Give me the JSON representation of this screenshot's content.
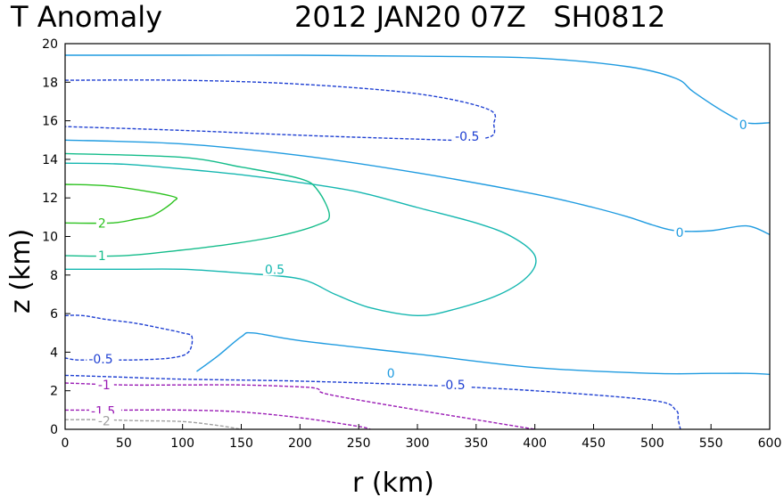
{
  "header": {
    "title_left": "T Anomaly",
    "title_right": "2012 JAN20 07Z   SH0812"
  },
  "chart_data": {
    "type": "contour",
    "title": "T Anomaly",
    "subtitle": "2012 JAN20 07Z   SH0812",
    "xlabel": "r (km)",
    "ylabel": "z (km)",
    "xlim": [
      0,
      600
    ],
    "ylim": [
      0,
      20
    ],
    "xticks": [
      0,
      50,
      100,
      150,
      200,
      250,
      300,
      350,
      400,
      450,
      500,
      550,
      600
    ],
    "yticks": [
      0,
      2,
      4,
      6,
      8,
      10,
      12,
      14,
      16,
      18,
      20
    ],
    "xtick_labels": [
      "0",
      "50",
      "100",
      "150",
      "200",
      "250",
      "300",
      "350",
      "400",
      "450",
      "500",
      "550",
      "600"
    ],
    "ytick_labels": [
      "0",
      "2",
      "4",
      "6",
      "8",
      "10",
      "12",
      "14",
      "16",
      "18",
      "20"
    ],
    "grid": false,
    "contours": [
      {
        "level": 0,
        "color": "#1f9be0",
        "dashed": false,
        "x": [
          0,
          100,
          200,
          300,
          400,
          480,
          520,
          535,
          560,
          580,
          600
        ],
        "y": [
          19.4,
          19.4,
          19.4,
          19.35,
          19.25,
          18.8,
          18.2,
          17.5,
          16.5,
          15.9,
          15.9
        ],
        "label": "0",
        "label_xy": [
          574,
          15.8
        ]
      },
      {
        "level": 0,
        "color": "#1f9be0",
        "dashed": false,
        "x": [
          0,
          100,
          200,
          300,
          400,
          450,
          480,
          500,
          520,
          550,
          580,
          600
        ],
        "y": [
          15.0,
          14.8,
          14.2,
          13.3,
          12.2,
          11.5,
          11.0,
          10.6,
          10.3,
          10.3,
          10.55,
          10.1
        ],
        "label": "0",
        "label_xy": [
          520,
          10.2
        ]
      },
      {
        "level": 0,
        "color": "#1f9be0",
        "dashed": false,
        "x": [
          112,
          130,
          150,
          160,
          200,
          300,
          400,
          500,
          550,
          580,
          600
        ],
        "y": [
          3.0,
          3.8,
          4.8,
          5.0,
          4.6,
          3.9,
          3.2,
          2.9,
          2.9,
          2.9,
          2.85
        ],
        "label": "0",
        "label_xy": [
          274,
          2.9
        ]
      },
      {
        "level": -0.5,
        "color": "#1e3fd2",
        "dashed": true,
        "x": [
          0,
          100,
          200,
          300,
          360,
          365,
          363,
          340,
          300,
          200,
          100,
          0
        ],
        "y": [
          18.1,
          18.1,
          17.9,
          17.4,
          16.6,
          15.8,
          15.2,
          15.0,
          15.05,
          15.25,
          15.5,
          15.7
        ],
        "label": "-0.5",
        "label_xy": [
          332,
          15.2
        ]
      },
      {
        "level": -0.5,
        "color": "#1e3fd2",
        "dashed": true,
        "x": [
          0,
          50,
          100,
          200,
          300,
          400,
          500,
          520,
          522,
          524
        ],
        "y": [
          2.8,
          2.7,
          2.6,
          2.5,
          2.3,
          2.0,
          1.5,
          1.0,
          0.5,
          0.0
        ],
        "label": "-0.5",
        "label_xy": [
          320,
          2.3
        ]
      },
      {
        "level": -0.5,
        "color": "#1e3fd2",
        "dashed": true,
        "x": [
          0,
          15,
          35,
          60,
          85,
          100,
          108,
          105,
          90,
          60,
          30,
          10,
          0
        ],
        "y": [
          5.9,
          5.9,
          5.7,
          5.5,
          5.2,
          5.0,
          4.8,
          4.0,
          3.7,
          3.6,
          3.6,
          3.6,
          3.7
        ],
        "label": "-0.5",
        "label_xy": [
          20,
          3.65
        ]
      },
      {
        "level": 0.5,
        "color": "#15b7b0",
        "dashed": false,
        "x": [
          0,
          50,
          100,
          150,
          200,
          250,
          300,
          350,
          380,
          400,
          395,
          370,
          330,
          300,
          260,
          230,
          200,
          150,
          100,
          50,
          0
        ],
        "y": [
          13.8,
          13.75,
          13.5,
          13.2,
          12.8,
          12.3,
          11.5,
          10.7,
          10.0,
          9.0,
          8.0,
          7.0,
          6.2,
          5.9,
          6.3,
          7.0,
          7.8,
          8.1,
          8.3,
          8.3,
          8.3
        ],
        "label": "0.5",
        "label_xy": [
          170,
          8.3
        ]
      },
      {
        "level": 1,
        "color": "#13bc8a",
        "dashed": false,
        "x": [
          0,
          100,
          150,
          200,
          215,
          225,
          215,
          180,
          140,
          100,
          50,
          0
        ],
        "y": [
          14.3,
          14.1,
          13.6,
          13.0,
          12.4,
          11.1,
          10.6,
          10.0,
          9.6,
          9.3,
          9.0,
          9.0
        ],
        "label": "1",
        "label_xy": [
          28,
          9.0
        ]
      },
      {
        "level": 2,
        "color": "#2cc21f",
        "dashed": false,
        "x": [
          0,
          40,
          90,
          92,
          75,
          60,
          40,
          0
        ],
        "y": [
          12.7,
          12.6,
          12.1,
          11.8,
          11.1,
          10.9,
          10.7,
          10.7
        ],
        "label": "2",
        "label_xy": [
          28,
          10.7
        ]
      },
      {
        "level": -1,
        "color": "#9a1bb5",
        "dashed": true,
        "x": [
          0,
          50,
          100,
          150,
          200,
          215,
          225,
          300,
          350,
          400
        ],
        "y": [
          2.4,
          2.3,
          2.3,
          2.3,
          2.2,
          2.1,
          1.8,
          1.0,
          0.5,
          0.0
        ],
        "label": "-1",
        "label_xy": [
          28,
          2.3
        ]
      },
      {
        "level": -1.5,
        "color": "#9a1bb5",
        "dashed": true,
        "x": [
          0,
          50,
          100,
          150,
          200,
          250,
          260
        ],
        "y": [
          1.0,
          1.0,
          1.0,
          0.9,
          0.6,
          0.15,
          0.0
        ],
        "label": "-1.5",
        "label_xy": [
          22,
          0.95
        ]
      },
      {
        "level": -2,
        "color": "#a0a0a0",
        "dashed": true,
        "x": [
          0,
          30,
          60,
          100,
          130,
          150
        ],
        "y": [
          0.5,
          0.5,
          0.45,
          0.4,
          0.2,
          0.0
        ],
        "label": "-2",
        "label_xy": [
          28,
          0.45
        ]
      }
    ]
  }
}
